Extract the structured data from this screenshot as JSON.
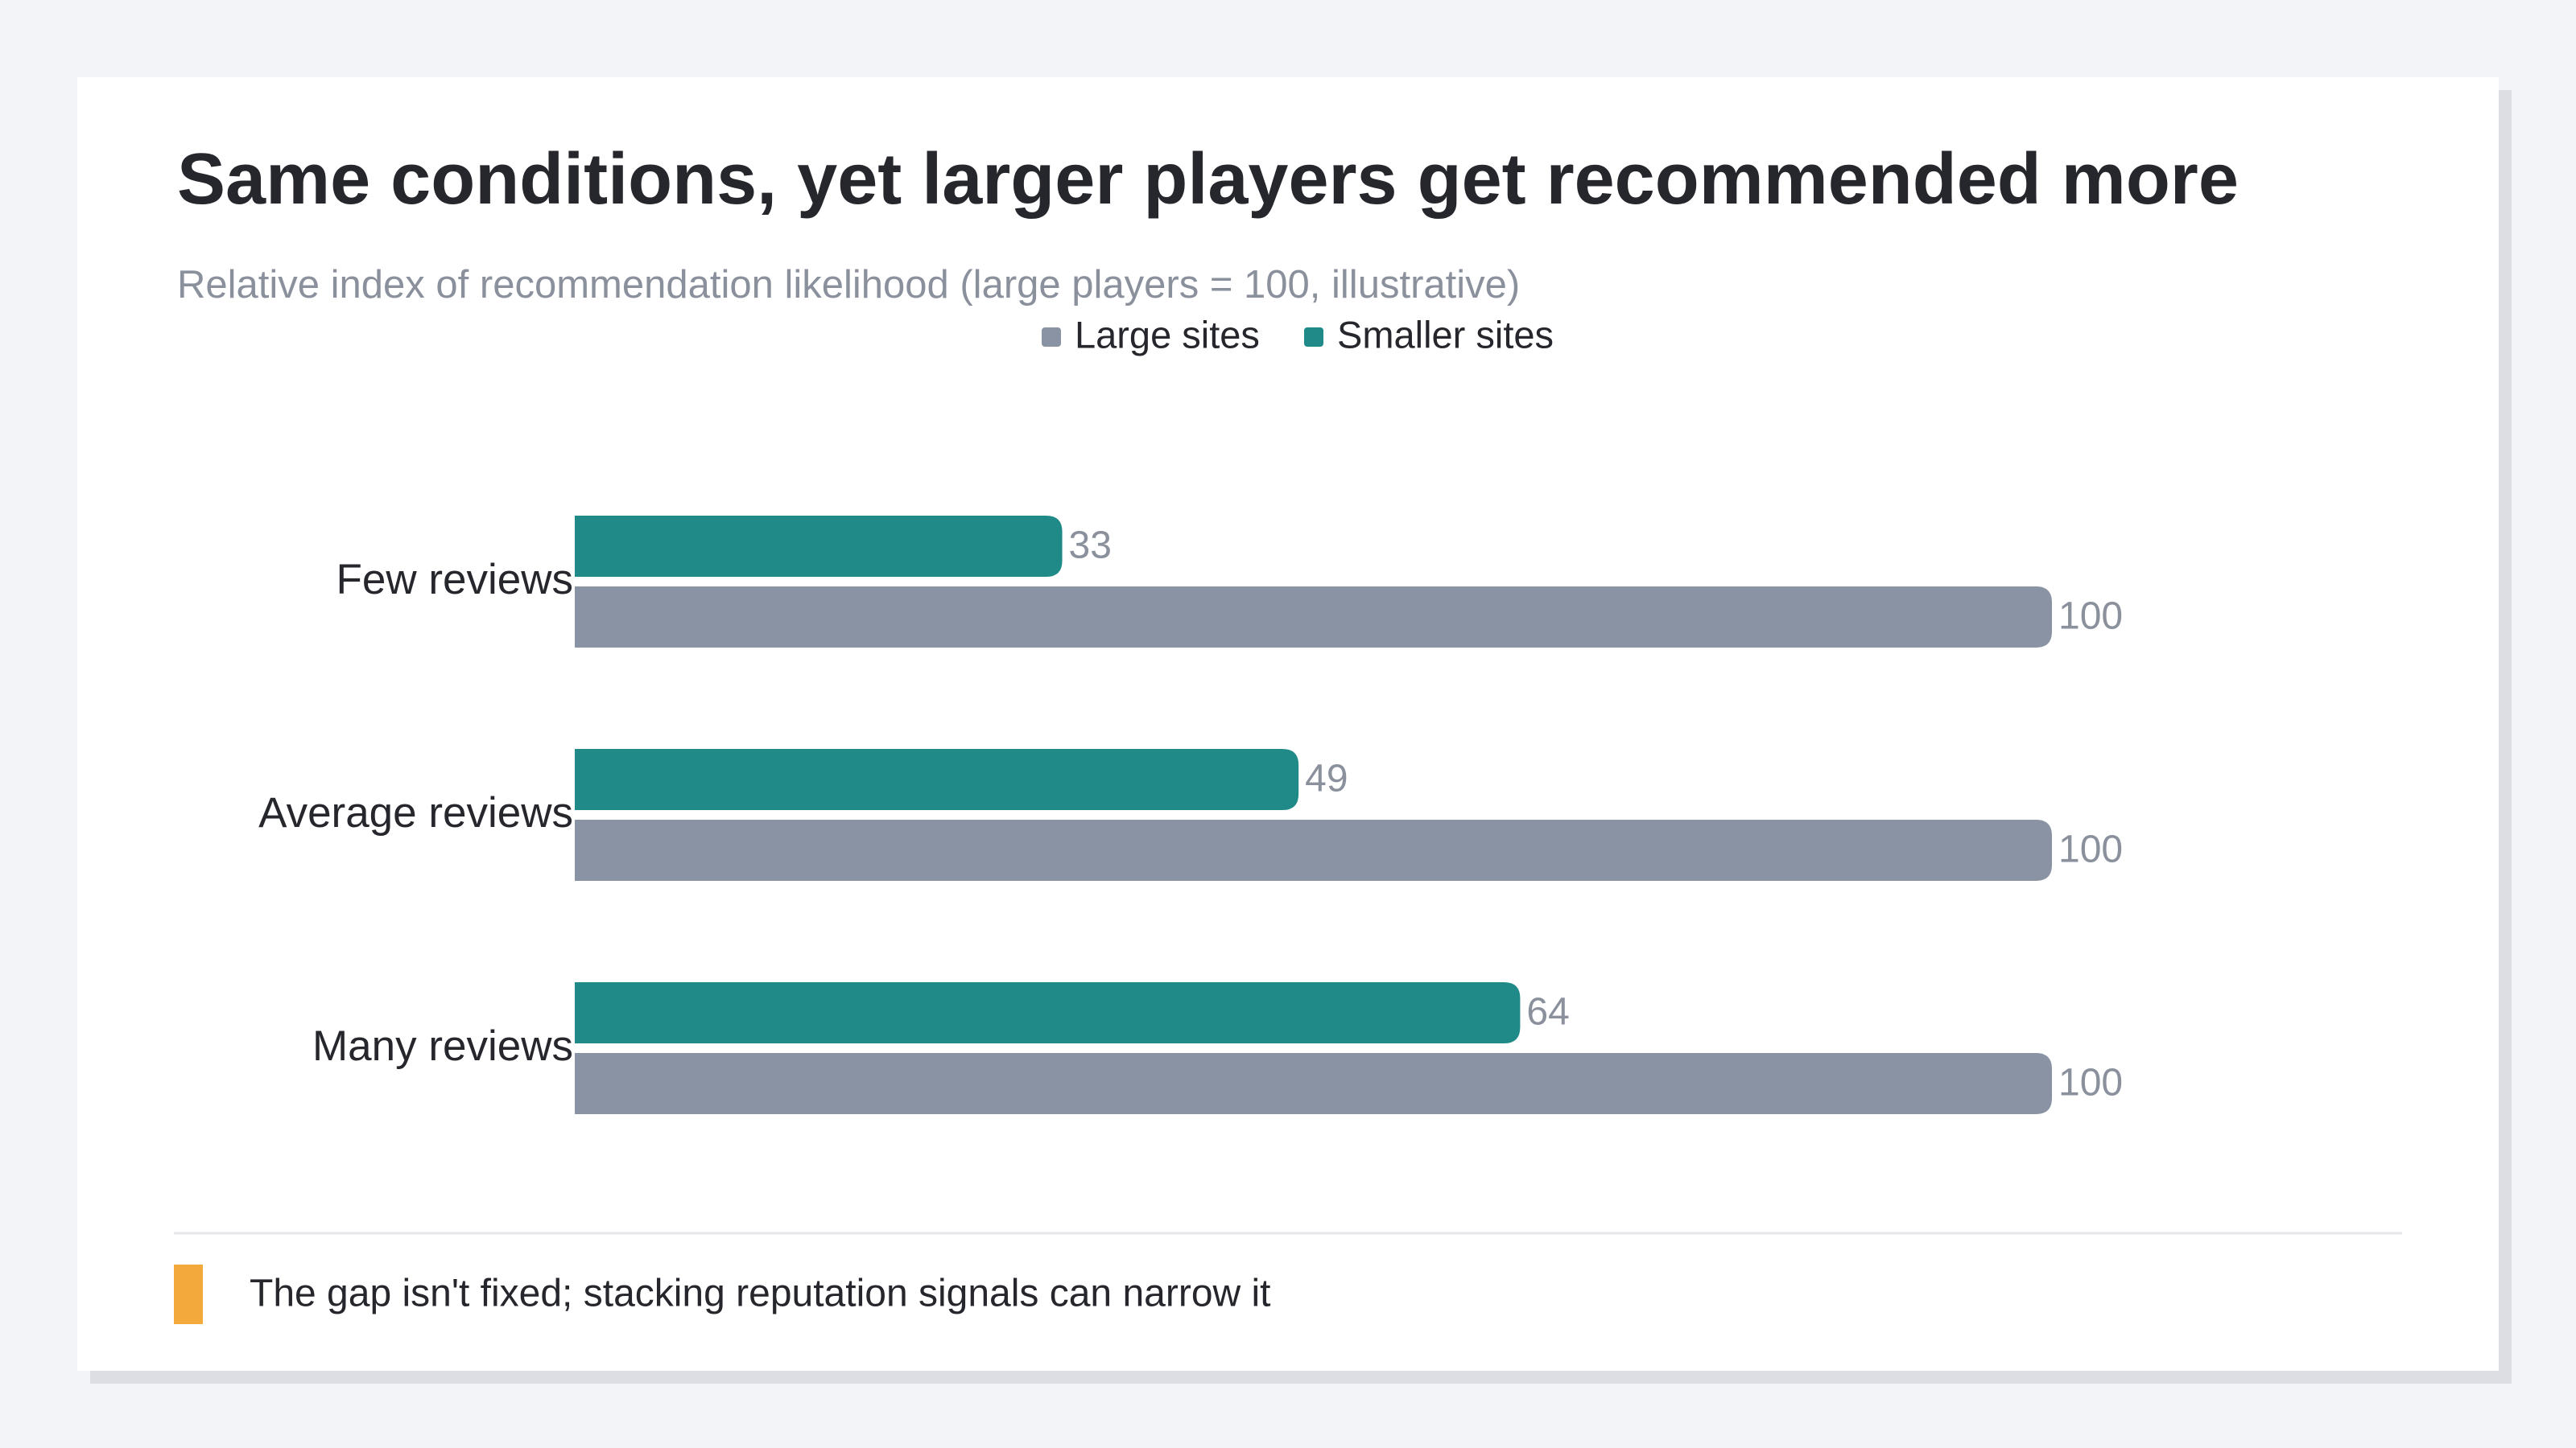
{
  "chart_data": {
    "type": "bar",
    "orientation": "horizontal",
    "title": "Same conditions, yet larger players get recommended more",
    "subtitle": "Relative index of recommendation likelihood (large players = 100, illustrative)",
    "categories": [
      "Few reviews",
      "Average reviews",
      "Many reviews"
    ],
    "series": [
      {
        "name": "Large sites",
        "color": "#8a93a3",
        "values": [
          100,
          100,
          100
        ]
      },
      {
        "name": "Smaller sites",
        "color": "#1f8a87",
        "values": [
          33,
          49,
          64
        ]
      }
    ],
    "annotation": "The gap isn't fixed; stacking reputation signals can narrow it"
  }
}
